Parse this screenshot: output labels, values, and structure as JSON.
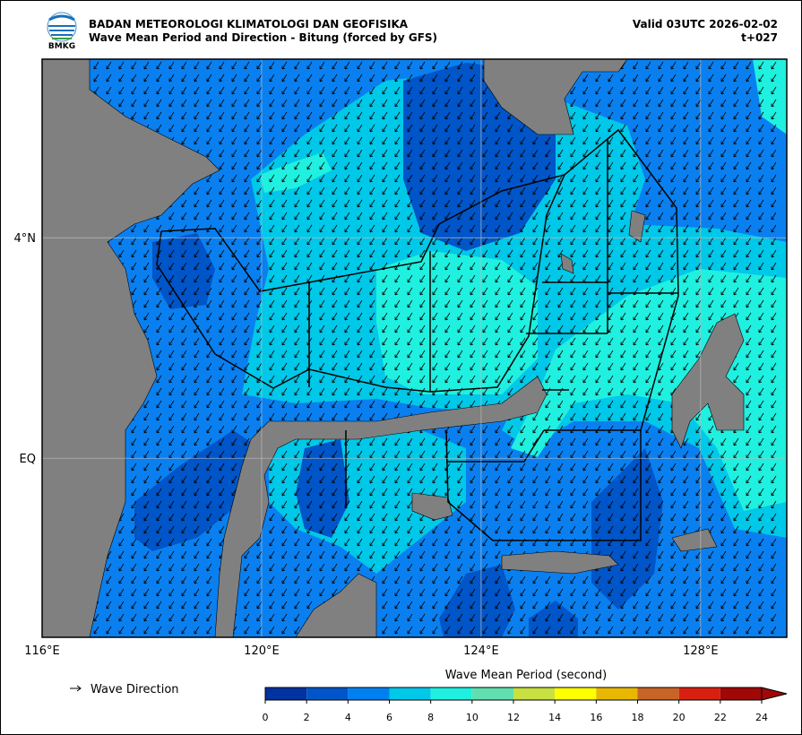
{
  "header": {
    "logo_text": "BMKG",
    "agency": "BADAN METEOROLOGI KLIMATOLOGI DAN GEOFISIKA",
    "title": "Wave Mean Period and Direction - Bitung (forced by GFS)",
    "valid": "Valid 03UTC 2026-02-02",
    "lead": "t+027"
  },
  "map": {
    "xlim": [
      116,
      129.57
    ],
    "ylim": [
      -3.25,
      7.24
    ],
    "xticks": [
      {
        "value": 116,
        "label": "116°E"
      },
      {
        "value": 120,
        "label": "120°E"
      },
      {
        "value": 124,
        "label": "124°E"
      },
      {
        "value": 128,
        "label": "128°E"
      }
    ],
    "yticks": [
      {
        "value": 4,
        "label": "4°N"
      },
      {
        "value": 0,
        "label": "EQ"
      }
    ],
    "grid": true
  },
  "legend": {
    "label": "Wave Direction"
  },
  "colorbar": {
    "title": "Wave Mean Period (second)",
    "ticks": [
      0,
      2,
      4,
      6,
      8,
      10,
      12,
      14,
      16,
      18,
      20,
      22,
      24
    ],
    "colors": [
      "#0033a0",
      "#0055c8",
      "#0080f0",
      "#00c8e8",
      "#20f0e0",
      "#60e0b0",
      "#c8e040",
      "#ffff00",
      "#e8b800",
      "#c86428",
      "#d82010",
      "#a00808"
    ],
    "extend": "max"
  }
}
